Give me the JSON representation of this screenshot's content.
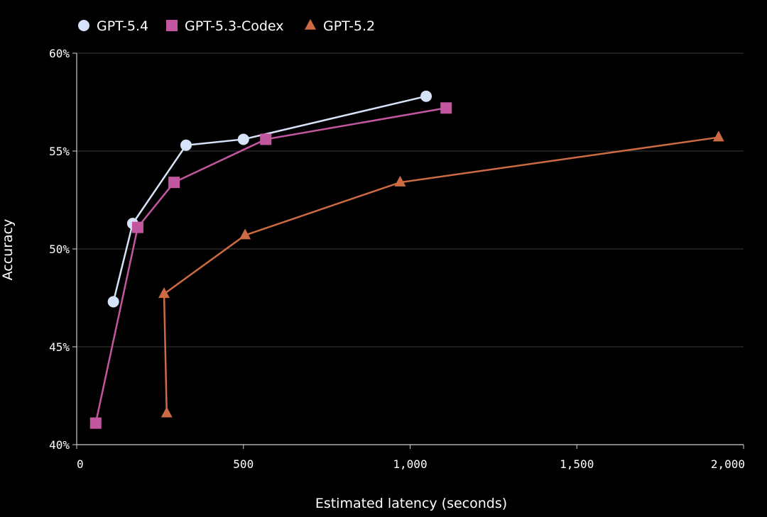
{
  "chart_data": {
    "type": "line",
    "title": "",
    "xlabel": "Estimated latency (seconds)",
    "ylabel": "Accuracy",
    "xlim": [
      0,
      2000
    ],
    "ylim": [
      40,
      60
    ],
    "xticks": [
      0,
      500,
      1000,
      1500,
      2000
    ],
    "xtick_labels": [
      "0",
      "500",
      "1,000",
      "1,500",
      "2,000"
    ],
    "yticks": [
      40,
      45,
      50,
      55,
      60
    ],
    "ytick_labels": [
      "40%",
      "45%",
      "50%",
      "55%",
      "60%"
    ],
    "grid": "horizontal",
    "legend_position": "top-left",
    "series": [
      {
        "name": "GPT-5.4",
        "color": "#d6e2f8",
        "marker": "circle",
        "x": [
          110,
          168,
          328,
          500,
          1048
        ],
        "y": [
          47.3,
          51.3,
          55.3,
          55.6,
          57.8
        ]
      },
      {
        "name": "GPT-5.3-Codex",
        "color": "#c2569f",
        "marker": "square",
        "x": [
          57,
          183,
          292,
          567,
          1108
        ],
        "y": [
          41.1,
          51.1,
          53.4,
          55.6,
          57.2
        ]
      },
      {
        "name": "GPT-5.2",
        "color": "#cc6a43",
        "marker": "triangle",
        "x": [
          270,
          262,
          505,
          970,
          1925
        ],
        "y": [
          41.6,
          47.7,
          50.7,
          53.4,
          55.7
        ]
      }
    ]
  }
}
